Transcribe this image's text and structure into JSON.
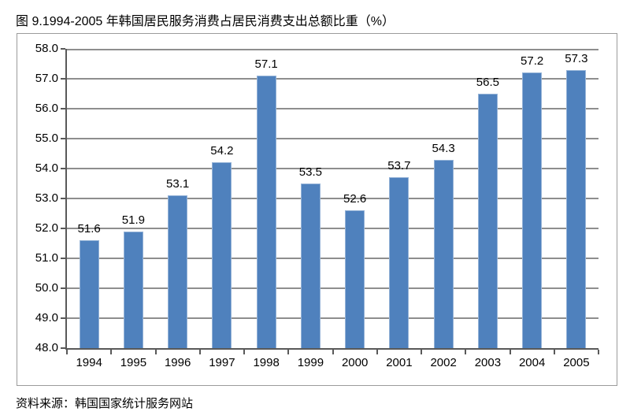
{
  "title": "图 9.1994-2005 年韩国居民服务消费占居民消费支出总额比重（%）",
  "source": "资料来源：韩国国家统计服务网站",
  "colors": {
    "bar": "#4f81bd",
    "bar_edge": "#95b3d7",
    "gridline": "#8e8e8e",
    "axis": "#595959",
    "frame_border": "#9b9b9b",
    "text": "#000000"
  },
  "chart_data": {
    "type": "bar",
    "title": "图 9.1994-2005 年韩国居民服务消费占居民消费支出总额比重（%）",
    "categories": [
      "1994",
      "1995",
      "1996",
      "1997",
      "1998",
      "1999",
      "2000",
      "2001",
      "2002",
      "2003",
      "2004",
      "2005"
    ],
    "values": [
      51.6,
      51.9,
      53.1,
      54.2,
      57.1,
      53.5,
      52.6,
      53.7,
      54.3,
      56.5,
      57.2,
      57.3
    ],
    "value_labels": [
      "51.6",
      "51.9",
      "53.1",
      "54.2",
      "57.1",
      "53.5",
      "52.6",
      "53.7",
      "54.3",
      "56.5",
      "57.2",
      "57.3"
    ],
    "xlabel": "",
    "ylabel": "",
    "ylim": [
      48.0,
      58.0
    ],
    "ytick_step": 1.0,
    "ytick_labels": [
      "58.0",
      "57.0",
      "56.0",
      "55.0",
      "54.0",
      "53.0",
      "52.0",
      "51.0",
      "50.0",
      "49.0",
      "48.0"
    ],
    "grid": true,
    "legend": false
  }
}
